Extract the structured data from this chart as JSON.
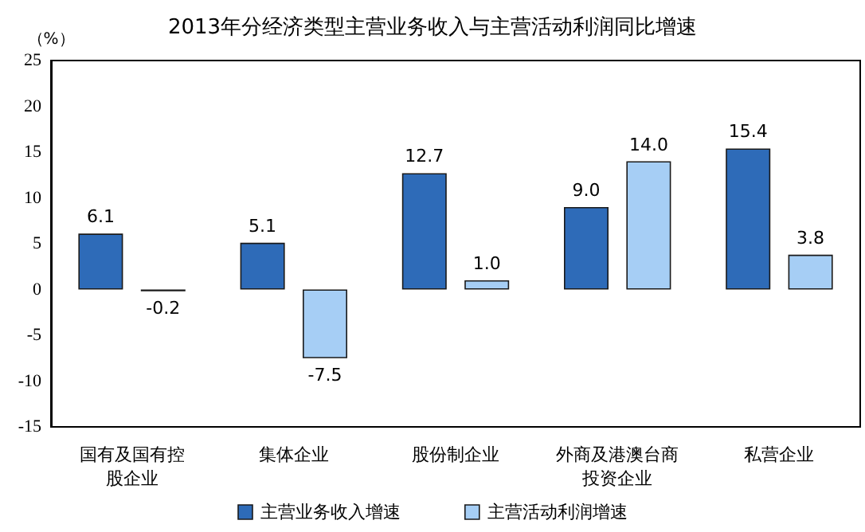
{
  "chart_data": {
    "type": "bar",
    "title": "2013年分经济类型主营业务收入与主营活动利润同比增速",
    "ylabel": "（%）",
    "categories": [
      "国有及国有控股企业",
      "集体企业",
      "股份制企业",
      "外商及港澳台商投资企业",
      "私营企业"
    ],
    "series": [
      {
        "name": "主营业务收入增速",
        "color": "#2e6bb8",
        "values": [
          6.1,
          5.1,
          12.7,
          9.0,
          15.4
        ],
        "value_labels": [
          "6.1",
          "5.1",
          "12.7",
          "9.0",
          "15.4"
        ]
      },
      {
        "name": "主营活动利润增速",
        "color": "#a6cef5",
        "values": [
          -0.2,
          -7.5,
          1.0,
          14.0,
          3.8
        ],
        "value_labels": [
          "-0.2",
          "-7.5",
          "1.0",
          "14.0",
          "3.8"
        ]
      }
    ],
    "ylim": [
      -15,
      25
    ],
    "yticks": [
      -15,
      -10,
      -5,
      0,
      5,
      10,
      15,
      20,
      25
    ],
    "grid": false,
    "legend": "bottom"
  }
}
